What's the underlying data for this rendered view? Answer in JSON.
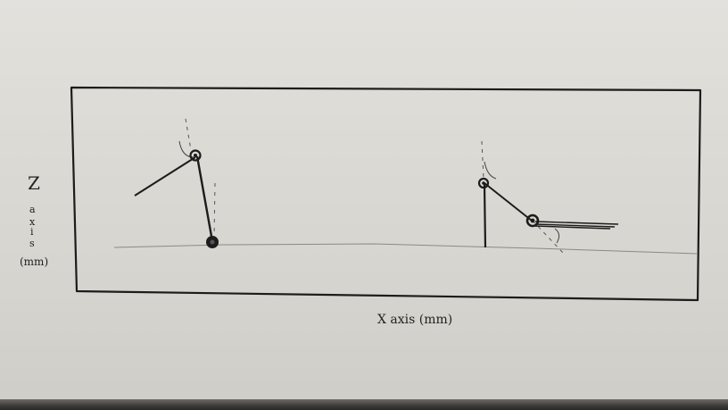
{
  "axes": {
    "x_label": "X axis (mm)",
    "z_label_letter": "Z",
    "z_label_word": "axis",
    "z_label_unit": "(mm)"
  },
  "colors": {
    "ink": "#1c1c1c",
    "pencil": "#8a8a88",
    "paper": "#dcdad4"
  }
}
